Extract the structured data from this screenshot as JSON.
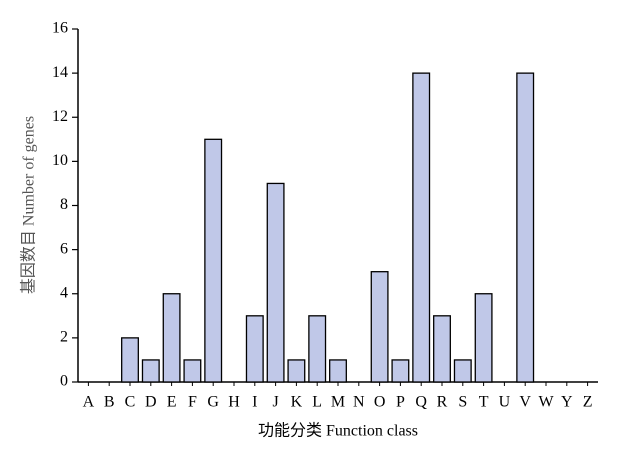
{
  "chart_data": {
    "type": "bar",
    "categories": [
      "A",
      "B",
      "C",
      "D",
      "E",
      "F",
      "G",
      "H",
      "I",
      "J",
      "K",
      "L",
      "M",
      "N",
      "O",
      "P",
      "Q",
      "R",
      "S",
      "T",
      "U",
      "V",
      "W",
      "Y",
      "Z"
    ],
    "values": [
      0,
      0,
      2,
      1,
      4,
      1,
      11,
      0,
      3,
      9,
      1,
      3,
      1,
      0,
      5,
      1,
      14,
      3,
      1,
      4,
      0,
      14,
      0,
      0,
      0
    ],
    "color": "#c0c8e8",
    "xlabel": "功能分类 Function class",
    "ylabel": "基因数目 Number of genes",
    "ylim": [
      0,
      16
    ],
    "yticks": [
      0,
      2,
      4,
      6,
      8,
      10,
      12,
      14,
      16
    ],
    "grid": false
  }
}
